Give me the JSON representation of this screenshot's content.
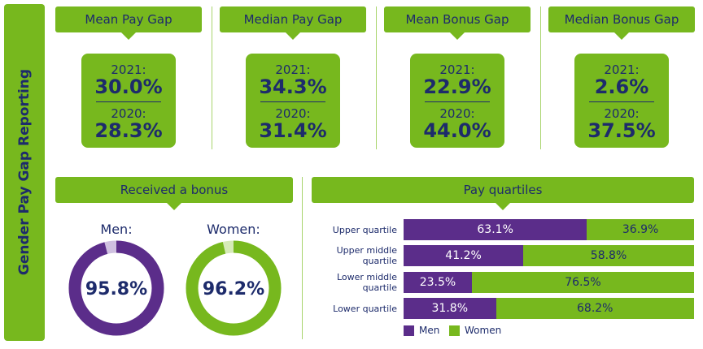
{
  "title": "Gender Pay Gap Reporting",
  "stats": [
    {
      "heading": "Mean Pay Gap",
      "items": [
        {
          "label": "2021:",
          "value": "30.0%"
        },
        {
          "label": "2020:",
          "value": "28.3%"
        }
      ]
    },
    {
      "heading": "Median Pay Gap",
      "items": [
        {
          "label": "2021:",
          "value": "34.3%"
        },
        {
          "label": "2020:",
          "value": "31.4%"
        }
      ]
    },
    {
      "heading": "Mean Bonus Gap",
      "items": [
        {
          "label": "2021:",
          "value": "22.9%"
        },
        {
          "label": "2020:",
          "value": "44.0%"
        }
      ]
    },
    {
      "heading": "Median Bonus Gap",
      "items": [
        {
          "label": "2021:",
          "value": "2.6%"
        },
        {
          "label": "2020:",
          "value": "37.5%"
        }
      ]
    }
  ],
  "chart_data": [
    {
      "type": "donut",
      "title": "Received a bonus",
      "categories": [
        "Men:",
        "Women:"
      ],
      "values": [
        95.8,
        96.2
      ],
      "value_labels": [
        "95.8%",
        "96.2%"
      ],
      "colors": [
        "#5b2d8a",
        "#77b81e"
      ],
      "track_colors": [
        "#cfc0e0",
        "#d6eab8"
      ],
      "ylim": [
        0,
        100
      ]
    },
    {
      "type": "stacked-bar-h",
      "title": "Pay quartiles",
      "categories": [
        "Upper quartile",
        "Upper middle quartile",
        "Lower middle quartile",
        "Lower quartile"
      ],
      "series": [
        {
          "name": "Men",
          "color": "#5b2d8a",
          "values": [
            63.1,
            41.2,
            23.5,
            31.8
          ],
          "value_labels": [
            "63.1%",
            "41.2%",
            "23.5%",
            "31.8%"
          ]
        },
        {
          "name": "Women",
          "color": "#77b81e",
          "values": [
            36.9,
            58.8,
            76.5,
            68.2
          ],
          "value_labels": [
            "36.9%",
            "58.8%",
            "76.5%",
            "68.2%"
          ]
        }
      ],
      "xlim": [
        0,
        100
      ],
      "legend": "bottom-left"
    }
  ]
}
